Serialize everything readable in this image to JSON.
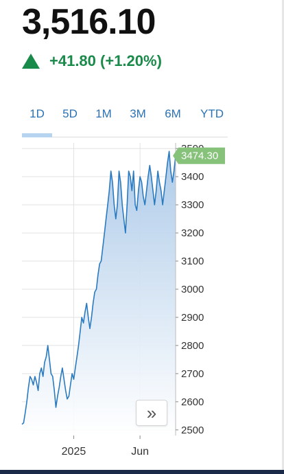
{
  "quote": {
    "price": "3,516.10",
    "change": "+41.80 (+1.20%)",
    "up_color": "#1a8a4a"
  },
  "tabs": [
    {
      "label": "1D",
      "selected": true
    },
    {
      "label": "5D",
      "selected": false
    },
    {
      "label": "1M",
      "selected": false
    },
    {
      "label": "3M",
      "selected": false
    },
    {
      "label": "6M",
      "selected": false
    },
    {
      "label": "YTD",
      "selected": false
    }
  ],
  "chart_data": {
    "type": "area",
    "series": [
      {
        "values": [
          2520,
          2525,
          2560,
          2600,
          2650,
          2690,
          2680,
          2660,
          2690,
          2670,
          2640,
          2700,
          2720,
          2690,
          2740,
          2760,
          2800,
          2750,
          2700,
          2690,
          2640,
          2580,
          2620,
          2650,
          2690,
          2720,
          2680,
          2640,
          2610,
          2620,
          2660,
          2700,
          2680,
          2720,
          2760,
          2800,
          2850,
          2900,
          2880,
          2920,
          2950,
          2900,
          2860,
          2900,
          2950,
          2990,
          3000,
          3050,
          3090,
          3100,
          3150,
          3200,
          3250,
          3300,
          3350,
          3420,
          3380,
          3300,
          3250,
          3300,
          3420,
          3380,
          3300,
          3250,
          3200,
          3300,
          3420,
          3400,
          3350,
          3420,
          3300,
          3280,
          3350,
          3400,
          3380,
          3330,
          3300,
          3350,
          3400,
          3440,
          3400,
          3350,
          3300,
          3350,
          3420,
          3380,
          3350,
          3300,
          3350,
          3400,
          3450,
          3490,
          3420,
          3380,
          3420,
          3474.3
        ]
      }
    ],
    "last_value": 3474.3,
    "last_label": "3474.30",
    "x_ticks": [
      "2025",
      "Jun"
    ],
    "y_ticks": [
      2500,
      2600,
      2700,
      2800,
      2900,
      3000,
      3100,
      3200,
      3300,
      3400,
      3500
    ],
    "ylim": [
      2480,
      3520
    ],
    "grid": true,
    "axis_side": "right",
    "line_color": "#2a7abf",
    "fill_color": "#a9c8e8",
    "badge_color": "#86c27a"
  },
  "expand_icon": "double-chevron-right-icon"
}
